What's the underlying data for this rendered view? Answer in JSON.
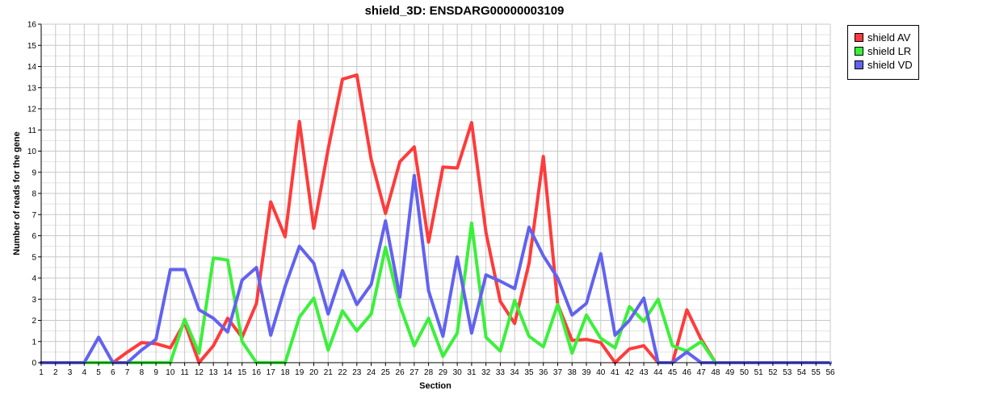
{
  "chart_data": {
    "type": "line",
    "title": "shield_3D: ENSDARG00000003109",
    "xlabel": "Section",
    "ylabel": "Number of reads for the gene",
    "ylim": [
      0,
      16
    ],
    "grid": true,
    "legend_position": "top-right-outside",
    "categories": [
      "1",
      "2",
      "3",
      "4",
      "5",
      "6",
      "7",
      "8",
      "9",
      "10",
      "11",
      "12",
      "13",
      "14",
      "15",
      "16",
      "17",
      "18",
      "19",
      "20",
      "21",
      "22",
      "23",
      "24",
      "25",
      "26",
      "27",
      "28",
      "29",
      "30",
      "31",
      "32",
      "33",
      "34",
      "35",
      "36",
      "37",
      "38",
      "39",
      "40",
      "41",
      "42",
      "43",
      "44",
      "45",
      "46",
      "47",
      "48",
      "49",
      "50",
      "51",
      "52",
      "53",
      "54",
      "55",
      "56"
    ],
    "yticks": [
      "0",
      "1",
      "2",
      "3",
      "4",
      "5",
      "6",
      "7",
      "8",
      "9",
      "10",
      "11",
      "12",
      "13",
      "14",
      "15",
      "16"
    ],
    "series": [
      {
        "name": "shield AV",
        "color": "#ff3b3b",
        "values": [
          0,
          0,
          0,
          0,
          0,
          0,
          0.5,
          0.95,
          0.9,
          0.7,
          1.9,
          0,
          0.8,
          2.1,
          1.2,
          2.8,
          7.6,
          5.95,
          11.4,
          6.35,
          10.1,
          13.4,
          13.6,
          9.6,
          7.05,
          9.5,
          10.2,
          5.7,
          9.25,
          9.2,
          11.35,
          6.15,
          2.9,
          1.85,
          4.7,
          9.75,
          2.75,
          1.05,
          1.1,
          0.95,
          0,
          0.65,
          0.8,
          0,
          0,
          2.5,
          1.1,
          0,
          0,
          0,
          0,
          0,
          0,
          0,
          0,
          0
        ]
      },
      {
        "name": "shield LR",
        "color": "#3bf03b",
        "values": [
          0,
          0,
          0,
          0,
          0,
          0,
          0,
          0,
          0,
          0,
          2.05,
          0.45,
          4.95,
          4.85,
          1,
          0,
          0,
          0,
          2.15,
          3.05,
          0.6,
          2.45,
          1.5,
          2.3,
          5.45,
          2.7,
          0.8,
          2.1,
          0.3,
          1.4,
          6.6,
          1.2,
          0.55,
          2.95,
          1.25,
          0.75,
          2.75,
          0.45,
          2.25,
          1.15,
          0.7,
          2.65,
          1.95,
          3,
          0.8,
          0.55,
          1,
          0,
          0,
          0,
          0,
          0,
          0,
          0,
          0,
          0
        ]
      },
      {
        "name": "shield VD",
        "color": "#6262f0",
        "values": [
          0,
          0,
          0,
          0,
          1.2,
          0,
          0,
          0.6,
          1.1,
          4.4,
          4.4,
          2.5,
          2.1,
          1.45,
          3.9,
          4.5,
          1.3,
          3.6,
          5.5,
          4.7,
          2.3,
          4.35,
          2.75,
          3.7,
          6.7,
          3.1,
          8.85,
          3.4,
          1.25,
          5,
          1.4,
          4.15,
          3.85,
          3.5,
          6.4,
          5.05,
          4,
          2.25,
          2.8,
          5.15,
          1.3,
          2,
          3.05,
          0,
          0,
          0.5,
          0,
          0,
          0,
          0,
          0,
          0,
          0,
          0,
          0,
          0
        ]
      }
    ]
  }
}
